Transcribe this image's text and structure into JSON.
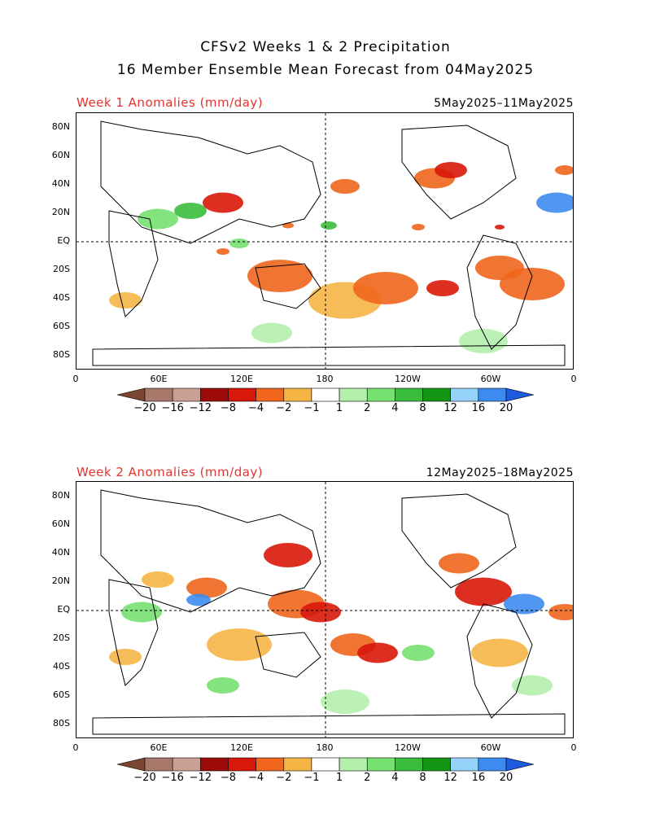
{
  "header": {
    "title_line1": "CFSv2 Weeks 1 & 2 Precipitation",
    "title_line2": "16 Member Ensemble Mean Forecast from 04May2025"
  },
  "panels": [
    {
      "id": "week1",
      "label": "Week 1 Anomalies (mm/day)",
      "date_range": "5May2025–11May2025"
    },
    {
      "id": "week2",
      "label": "Week 2 Anomalies (mm/day)",
      "date_range": "12May2025–18May2025"
    }
  ],
  "axes": {
    "lat_labels": [
      "80N",
      "60N",
      "40N",
      "20N",
      "EQ",
      "20S",
      "40S",
      "60S",
      "80S"
    ],
    "lon_labels": [
      "0",
      "60E",
      "120E",
      "180",
      "120W",
      "60W",
      "0"
    ]
  },
  "colorbar": {
    "labels": [
      "−20",
      "−16",
      "−12",
      "−8",
      "−4",
      "−2",
      "−1",
      "1",
      "2",
      "4",
      "8",
      "12",
      "16",
      "20"
    ],
    "colors": [
      "#7a4630",
      "#a8786a",
      "#c8a096",
      "#9c0a0a",
      "#d8180a",
      "#f0661c",
      "#f5b545",
      "#ffffff",
      "#b4f0ac",
      "#76e070",
      "#3cbc3c",
      "#149614",
      "#96d2fa",
      "#3c8cf0",
      "#1e5adc"
    ]
  }
}
